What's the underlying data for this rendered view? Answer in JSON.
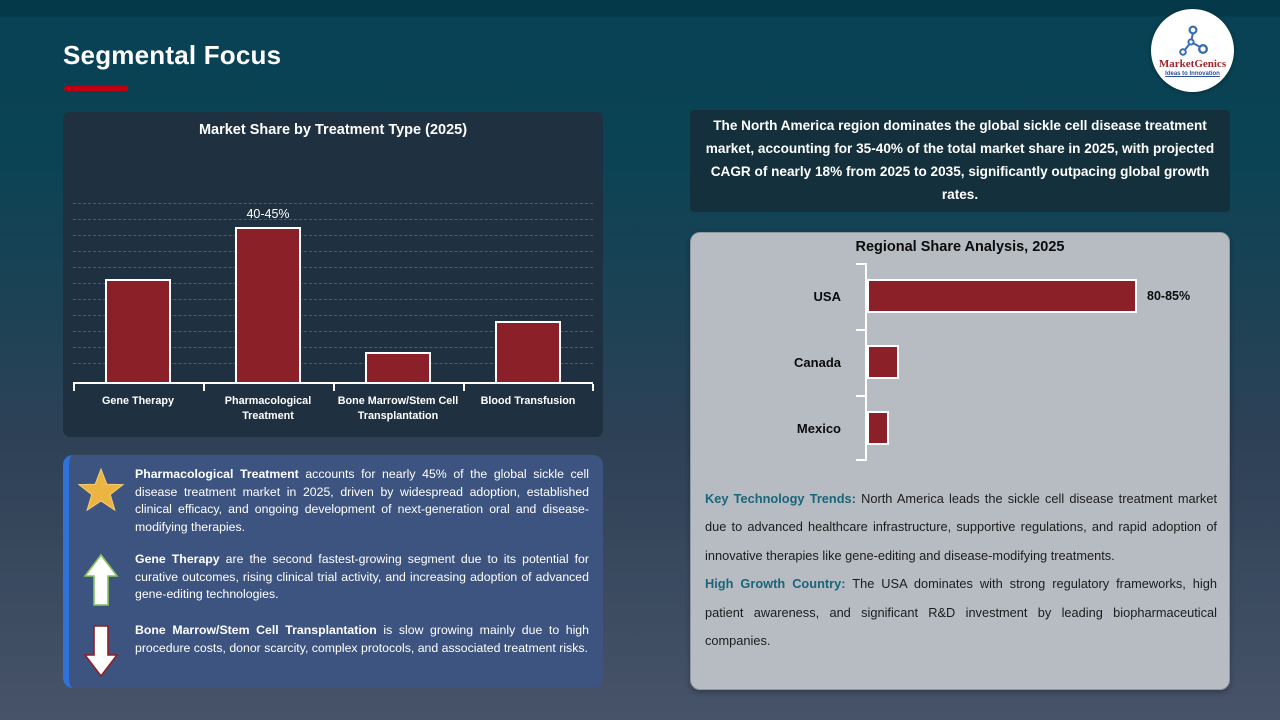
{
  "slide": {
    "title": "Segmental Focus"
  },
  "logo": {
    "brand": "MarketGenics",
    "tagline": "Ideas to Innovation"
  },
  "colors": {
    "bar": "#8b2028",
    "accent_red": "#c00010",
    "panel_navy": "#1f3140",
    "headline_box": "#14303c",
    "gray_panel": "#b7bcc3",
    "insights_panel": "#3d5480",
    "insights_stripe": "#2f72d8",
    "teal_lead": "#19657a",
    "star_gold": "#ecb440"
  },
  "chart_data": [
    {
      "type": "bar",
      "title": "Market Share by Treatment Type (2025)",
      "categories": [
        "Gene Therapy",
        "Pharmacological Treatment",
        "Bone Marrow/Stem Cell Transplantation",
        "Blood Transfusion"
      ],
      "values": [
        30,
        45,
        9,
        18
      ],
      "data_labels": [
        "",
        "40-45%",
        "",
        ""
      ],
      "ylim": [
        0,
        50
      ],
      "grid": "dashed-horizontal",
      "legend": "none",
      "bar_color": "#8b2028"
    },
    {
      "type": "bar-horizontal",
      "title": "Regional Share Analysis, 2025",
      "categories": [
        "USA",
        "Canada",
        "Mexico"
      ],
      "values": [
        85,
        10,
        7
      ],
      "data_labels": [
        "80-85%",
        "",
        ""
      ],
      "xlim": [
        0,
        100
      ],
      "grid": "off",
      "legend": "none",
      "bar_color": "#8b2028"
    }
  ],
  "right": {
    "headline": "The North America region dominates the global sickle cell disease treatment market, accounting for 35-40% of the total market share in 2025, with projected CAGR of nearly 18% from 2025 to 2035, significantly outpacing global growth rates.",
    "paragraphs": [
      {
        "lead": "Key Technology Trends:",
        "text": " North America leads the sickle cell disease treatment market due to advanced healthcare infrastructure, supportive regulations, and rapid adoption of innovative therapies like gene-editing and disease-modifying treatments."
      },
      {
        "lead": "High Growth Country:",
        "text": " The USA dominates with strong regulatory frameworks, high patient awareness, and significant R&D investment by leading biopharmaceutical companies."
      }
    ]
  },
  "insights": {
    "items": [
      {
        "icon": "star-icon",
        "lead": "Pharmacological Treatment",
        "text": " accounts for nearly 45% of the global sickle cell disease treatment market in 2025, driven by widespread adoption, established clinical efficacy, and ongoing development of next-generation oral and disease-modifying therapies."
      },
      {
        "icon": "arrow-up-icon",
        "lead": "Gene Therapy",
        "text": " are the second fastest-growing segment due to its potential for curative outcomes, rising clinical trial activity, and increasing adoption of advanced gene-editing technologies."
      },
      {
        "icon": "arrow-down-icon",
        "lead": "Bone Marrow/Stem Cell Transplantation",
        "text": " is slow growing mainly due to high procedure costs, donor scarcity, complex protocols, and associated treatment risks."
      }
    ]
  }
}
